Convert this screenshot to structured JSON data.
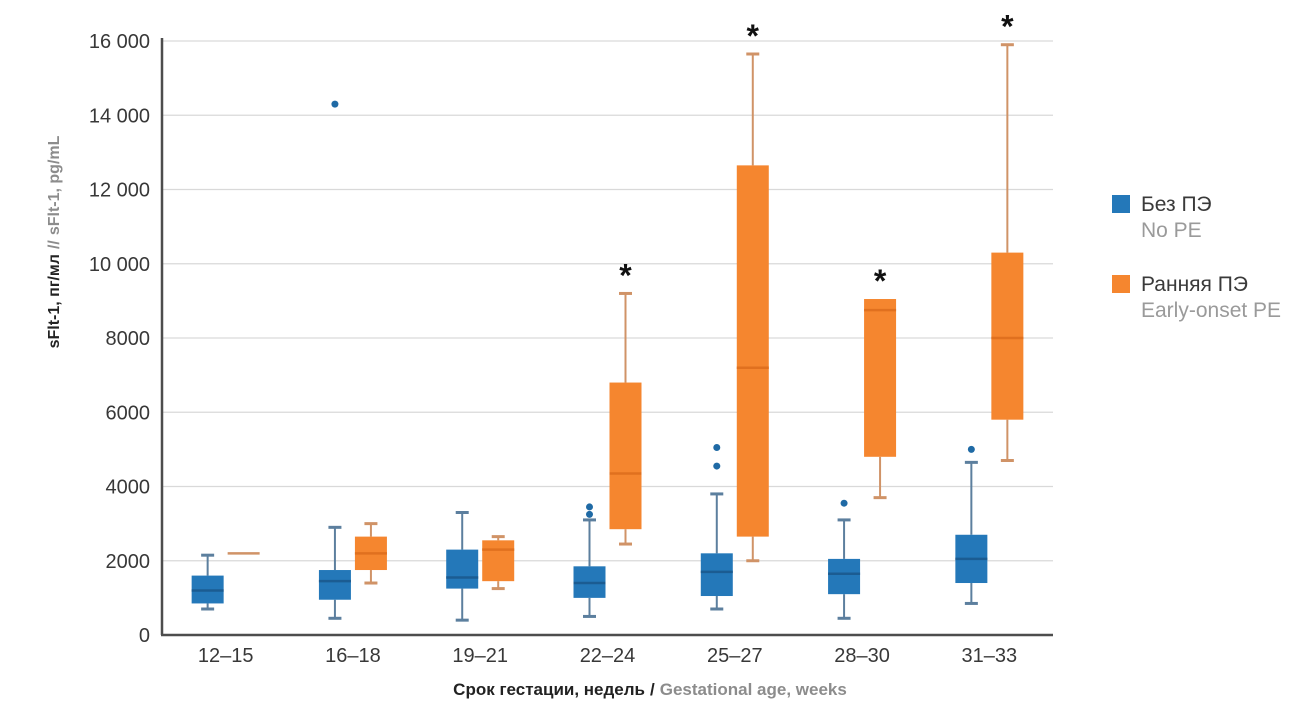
{
  "figure": {
    "background": "#ffffff"
  },
  "legend": {
    "items": [
      {
        "label_ru": "Без ПЭ",
        "label_en": "No PE",
        "color": "#2478B9"
      },
      {
        "label_ru": "Ранняя ПЭ",
        "label_en": "Early-onset PE",
        "color": "#F5862F"
      }
    ]
  },
  "chart_data": {
    "type": "boxplot",
    "title": "",
    "ylabel_ru": "sFlt-1, пг/мл",
    "ylabel_sep": "//",
    "ylabel_en": "sFlt-1, pg/mL",
    "xlabel_ru": "Срок гестации, недель",
    "xlabel_sep": "/",
    "xlabel_en": "Gestational age, weeks",
    "ylim": [
      0,
      16000
    ],
    "ytick_step": 2000,
    "ytick_labels": [
      "0",
      "2000",
      "4000",
      "6000",
      "8000",
      "10 000",
      "12 000",
      "14 000",
      "16 000"
    ],
    "grid": true,
    "legend_position": "right",
    "significance_marker": "*",
    "categories": [
      "12–15",
      "16–18",
      "19–21",
      "22–24",
      "25–27",
      "28–30",
      "31–33"
    ],
    "series": [
      {
        "name": "Без ПЭ / No PE",
        "fill": "#2478B9",
        "median_color": "#1B5C92",
        "whisker_color": "#5C7F9E",
        "outlier_color": "#1F6AA5",
        "boxes": [
          {
            "whislo": 700,
            "q1": 850,
            "med": 1200,
            "q3": 1600,
            "whishi": 2150,
            "outliers": [],
            "star": false
          },
          {
            "whislo": 450,
            "q1": 950,
            "med": 1450,
            "q3": 1750,
            "whishi": 2900,
            "outliers": [
              14300
            ],
            "star": false
          },
          {
            "whislo": 400,
            "q1": 1250,
            "med": 1550,
            "q3": 2300,
            "whishi": 3300,
            "outliers": [],
            "star": false
          },
          {
            "whislo": 500,
            "q1": 1000,
            "med": 1400,
            "q3": 1850,
            "whishi": 3100,
            "outliers": [
              3250,
              3450
            ],
            "star": false
          },
          {
            "whislo": 700,
            "q1": 1050,
            "med": 1700,
            "q3": 2200,
            "whishi": 3800,
            "outliers": [
              4550,
              5050
            ],
            "star": false
          },
          {
            "whislo": 450,
            "q1": 1100,
            "med": 1650,
            "q3": 2050,
            "whishi": 3100,
            "outliers": [
              3550
            ],
            "star": false
          },
          {
            "whislo": 850,
            "q1": 1400,
            "med": 2050,
            "q3": 2700,
            "whishi": 4650,
            "outliers": [
              5000
            ],
            "star": false
          }
        ]
      },
      {
        "name": "Ранняя ПЭ / Early-onset PE",
        "fill": "#F5862F",
        "median_color": "#E0701F",
        "whisker_color": "#D09367",
        "outlier_color": "#E0701F",
        "boxes": [
          {
            "whislo": 2200,
            "q1": 2200,
            "med": 2200,
            "q3": 2200,
            "whishi": 2200,
            "outliers": [],
            "star": false
          },
          {
            "whislo": 1400,
            "q1": 1750,
            "med": 2200,
            "q3": 2650,
            "whishi": 3000,
            "outliers": [],
            "star": false
          },
          {
            "whislo": 1250,
            "q1": 1450,
            "med": 2300,
            "q3": 2550,
            "whishi": 2650,
            "outliers": [],
            "star": false
          },
          {
            "whislo": 2450,
            "q1": 2850,
            "med": 4350,
            "q3": 6800,
            "whishi": 9200,
            "outliers": [],
            "star": true
          },
          {
            "whislo": 2000,
            "q1": 2650,
            "med": 7200,
            "q3": 12650,
            "whishi": 15650,
            "outliers": [],
            "star": true
          },
          {
            "whislo": 3700,
            "q1": 4800,
            "med": 8750,
            "q3": 9050,
            "whishi": 9050,
            "outliers": [],
            "star": true
          },
          {
            "whislo": 4700,
            "q1": 5800,
            "med": 8000,
            "q3": 10300,
            "whishi": 15900,
            "outliers": [],
            "star": true
          }
        ]
      }
    ]
  }
}
